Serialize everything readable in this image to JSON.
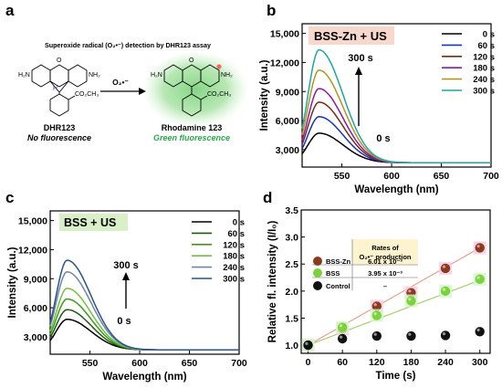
{
  "panel_a": {
    "letter": "a",
    "title": "Superoxide radical (O₂•⁻) detection by DHR123 assay",
    "left_name": "DHR123",
    "left_desc": "No fluorescence",
    "right_name": "Rhodamine 123",
    "right_desc": "Green fluorescence",
    "reagent": "O₂•⁻",
    "nh2": "NH₂",
    "h2n": "H₂N",
    "ester": "CO₂CH₃",
    "h": "H",
    "o": "O",
    "colors": {
      "glow": "#7fd37f",
      "desc_right": "#2aa84a",
      "h_atom": "#4a4ad0",
      "radical_dot": "#ff6060"
    }
  },
  "panel_b": {
    "letter": "b",
    "label": "BSS-Zn + US",
    "arrow_top": "300 s",
    "arrow_bottom": "0 s",
    "label_bg": "#f8d8cc"
  },
  "panel_c": {
    "letter": "c",
    "label": "BSS + US",
    "arrow_top": "300 s",
    "arrow_bottom": "0 s",
    "label_bg": "#d9efc8"
  },
  "panel_d": {
    "letter": "d",
    "table_header_line1": "Rates of",
    "table_header_line2": "O₂•⁻ production",
    "table_rows": [
      {
        "name": "BSS-Zn",
        "rate": "6.01 x 10⁻³",
        "color": "#8b3a1e"
      },
      {
        "name": "BSS",
        "rate": "3.95 x 10⁻³",
        "color": "#7cd23a"
      },
      {
        "name": "Control",
        "rate": "–",
        "color": "#111111"
      }
    ],
    "table_bg": "#fdf3cf"
  },
  "chart_data": [
    {
      "type": "line",
      "panel": "b",
      "xlabel": "Wavelength (nm)",
      "ylabel": "Intensity (a.u.)",
      "xlim": [
        510,
        700
      ],
      "ylim": [
        1200,
        16000
      ],
      "xticks": [
        550,
        600,
        650,
        700
      ],
      "xtick_labels": [
        "550",
        "600",
        "650",
        "700"
      ],
      "yticks": [
        3000,
        6000,
        9000,
        12000,
        15000
      ],
      "ytick_labels": [
        "3,000",
        "6,000",
        "9,000",
        "12,000",
        "15,000"
      ],
      "peak_x": 527,
      "tail_value": 1650,
      "legend_position": "top-right",
      "series": [
        {
          "name": "0 s",
          "color": "#000000",
          "peak": 4700
        },
        {
          "name": "60 s",
          "color": "#1434c8",
          "peak": 6400
        },
        {
          "name": "120 s",
          "color": "#7a2a12",
          "peak": 7900
        },
        {
          "name": "180 s",
          "color": "#8a1aa8",
          "peak": 9300
        },
        {
          "name": "240 s",
          "color": "#b89418",
          "peak": 11200
        },
        {
          "name": "300 s",
          "color": "#1aa8a0",
          "peak": 13300
        }
      ]
    },
    {
      "type": "line",
      "panel": "c",
      "xlabel": "Wavelength (nm)",
      "ylabel": "Intensity (a.u.)",
      "xlim": [
        510,
        700
      ],
      "ylim": [
        1200,
        16000
      ],
      "xticks": [
        550,
        600,
        650,
        700
      ],
      "xtick_labels": [
        "550",
        "600",
        "650",
        "700"
      ],
      "yticks": [
        3000,
        6000,
        9000,
        12000,
        15000
      ],
      "ytick_labels": [
        "3,000",
        "6,000",
        "9,000",
        "12,000",
        "15,000"
      ],
      "peak_x": 527,
      "tail_value": 1650,
      "legend_position": "top-right",
      "series": [
        {
          "name": "0 s",
          "color": "#000000",
          "peak": 4800
        },
        {
          "name": "60 s",
          "color": "#1f5a12",
          "peak": 5800
        },
        {
          "name": "120 s",
          "color": "#3a9a1a",
          "peak": 6900
        },
        {
          "name": "180 s",
          "color": "#72c042",
          "peak": 8000
        },
        {
          "name": "240 s",
          "color": "#6f86a8",
          "peak": 9700
        },
        {
          "name": "300 s",
          "color": "#2c5288",
          "peak": 10900
        }
      ]
    },
    {
      "type": "scatter",
      "panel": "d",
      "xlabel": "Time (s)",
      "ylabel": "Relative fl. intensity (I/I₀)",
      "xlim": [
        -12,
        318
      ],
      "ylim": [
        0.85,
        3.5
      ],
      "xticks": [
        0,
        60,
        120,
        180,
        240,
        300
      ],
      "xtick_labels": [
        "0",
        "60",
        "120",
        "180",
        "240",
        "300"
      ],
      "yticks": [
        1.0,
        1.5,
        2.0,
        2.5,
        3.0,
        3.5
      ],
      "ytick_labels": [
        "1.0",
        "1.5",
        "2.0",
        "2.5",
        "3.0",
        "3.5"
      ],
      "x": [
        0,
        60,
        120,
        180,
        240,
        300
      ],
      "series": [
        {
          "name": "BSS-Zn",
          "color": "#8b3a1e",
          "values": [
            1.0,
            1.3,
            1.72,
            1.97,
            2.42,
            2.8
          ],
          "fit": [
            1.0,
            2.8
          ],
          "fit_color": "#e8907a"
        },
        {
          "name": "BSS",
          "color": "#7cd23a",
          "values": [
            1.0,
            1.33,
            1.55,
            1.82,
            2.0,
            2.22
          ],
          "fit": [
            1.0,
            2.2
          ],
          "fit_color": "#9acb5a"
        },
        {
          "name": "Control",
          "color": "#111111",
          "values": [
            1.0,
            1.12,
            1.17,
            1.17,
            1.18,
            1.25
          ]
        }
      ],
      "legend_position": "top-left"
    }
  ]
}
